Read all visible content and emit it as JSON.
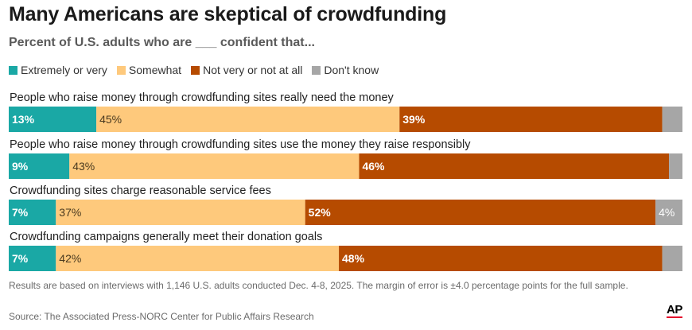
{
  "chart_data": {
    "type": "bar",
    "orientation": "horizontal-stacked-100",
    "title": "Many Americans are skeptical of crowdfunding",
    "subtitle": "Percent of U.S. adults who are ___ confident that...",
    "categories": [
      "People who raise money through crowdfunding sites really need the money",
      "People who raise money through crowdfunding sites use the money they raise responsibly",
      "Crowdfunding sites charge reasonable service fees",
      "Crowdfunding campaigns generally meet their donation goals"
    ],
    "series": [
      {
        "name": "Extremely or very",
        "color": "#1aa8a5",
        "values": [
          13,
          9,
          7,
          7
        ],
        "labels": [
          "13%",
          "9%",
          "7%",
          "7%"
        ],
        "label_color": "#ffffff"
      },
      {
        "name": "Somewhat",
        "color": "#fec97c",
        "values": [
          45,
          43,
          37,
          42
        ],
        "labels": [
          "45%",
          "43%",
          "37%",
          "42%"
        ],
        "label_color": "#4a3a20"
      },
      {
        "name": "Not very or not at all",
        "color": "#b64b00",
        "values": [
          39,
          46,
          52,
          48
        ],
        "labels": [
          "39%",
          "46%",
          "52%",
          "48%"
        ],
        "label_color": "#ffffff"
      },
      {
        "name": "Don't know",
        "color": "#a6a6a6",
        "values": [
          3,
          2,
          4,
          3
        ],
        "labels": [
          "",
          "",
          "4%",
          ""
        ],
        "label_color": "#ffffff"
      }
    ],
    "xlim": [
      0,
      100
    ],
    "legend": "top-left"
  },
  "footnote": "Results are based on interviews with 1,146 U.S. adults conducted Dec. 4-8, 2025. The margin of error is ±4.0 percentage points for the full sample.",
  "source": "Source: The Associated Press-NORC Center for Public Affairs Research",
  "logo": "AP"
}
